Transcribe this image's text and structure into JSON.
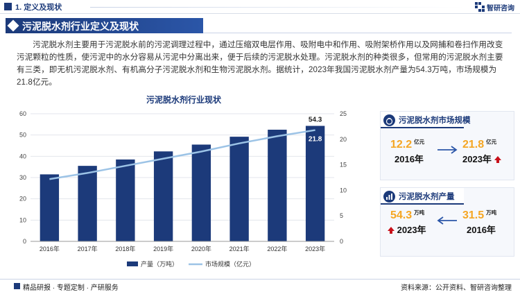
{
  "header": {
    "section_title": "1. 定义及现状",
    "logo_text": "智研咨询"
  },
  "banner": {
    "title": "污泥脱水剂行业定义及现状"
  },
  "intro": {
    "paragraph": "污泥脱水剂主要用于污泥脱水前的污泥调理过程中，通过压缩双电层作用、吸附电中和作用、吸附架桥作用以及网捕和卷扫作用改变污泥颗粒的性质，使污泥中的水分容易从污泥中分离出来，便于后续的污泥脱水处理。污泥脱水剂的种类很多，但常用的污泥脱水剂主要有三类，即无机污泥脱水剂、有机高分子污泥脱水剂和生物污泥脱水剂。据统计，2023年我国污泥脱水剂产量为54.3万吨，市场规模为21.8亿元。"
  },
  "chart_data": {
    "type": "bar",
    "title": "污泥脱水剂行业现状",
    "categories": [
      "2016年",
      "2017年",
      "2018年",
      "2019年",
      "2020年",
      "2021年",
      "2022年",
      "2023年"
    ],
    "series": [
      {
        "name": "产量（万吨）",
        "type": "bar",
        "axis": "left",
        "color": "#1c3a7a",
        "values": [
          31.5,
          35.5,
          38.5,
          42.3,
          45.5,
          49.2,
          52.5,
          54.3
        ]
      },
      {
        "name": "市场规模（亿元）",
        "type": "line",
        "axis": "right",
        "color": "#9cc3e6",
        "values": [
          12.2,
          13.4,
          14.8,
          16.2,
          17.6,
          19.2,
          20.6,
          21.8
        ]
      }
    ],
    "y_left": {
      "min": 0,
      "max": 60,
      "ticks": [
        "0",
        "10",
        "20",
        "30",
        "40",
        "50",
        "60"
      ]
    },
    "y_right": {
      "min": 0,
      "max": 25,
      "ticks": [
        "0",
        "5",
        "10",
        "15",
        "20",
        "25"
      ]
    },
    "data_labels": {
      "bar_2023": "54.3",
      "line_2023": "21.8"
    },
    "grid": true,
    "legend": "bottom-center"
  },
  "cards": {
    "market": {
      "title": "污泥脱水剂市场规模",
      "left_value": "12.2",
      "left_unit": "亿元",
      "left_year": "2016年",
      "right_value": "21.8",
      "right_unit": "亿元",
      "right_year": "2023年",
      "value_color": "#f5a623"
    },
    "output": {
      "title": "污泥脱水剂产量",
      "left_value": "54.3",
      "left_unit": "万吨",
      "left_year": "2023年",
      "right_value": "31.5",
      "right_unit": "万吨",
      "right_year": "2016年",
      "value_color": "#f5a623"
    }
  },
  "footer": {
    "left_text": "精品研报 · 专题定制 · 产研服务",
    "right_text": "资料来源：公开资料、智研咨询整理"
  }
}
